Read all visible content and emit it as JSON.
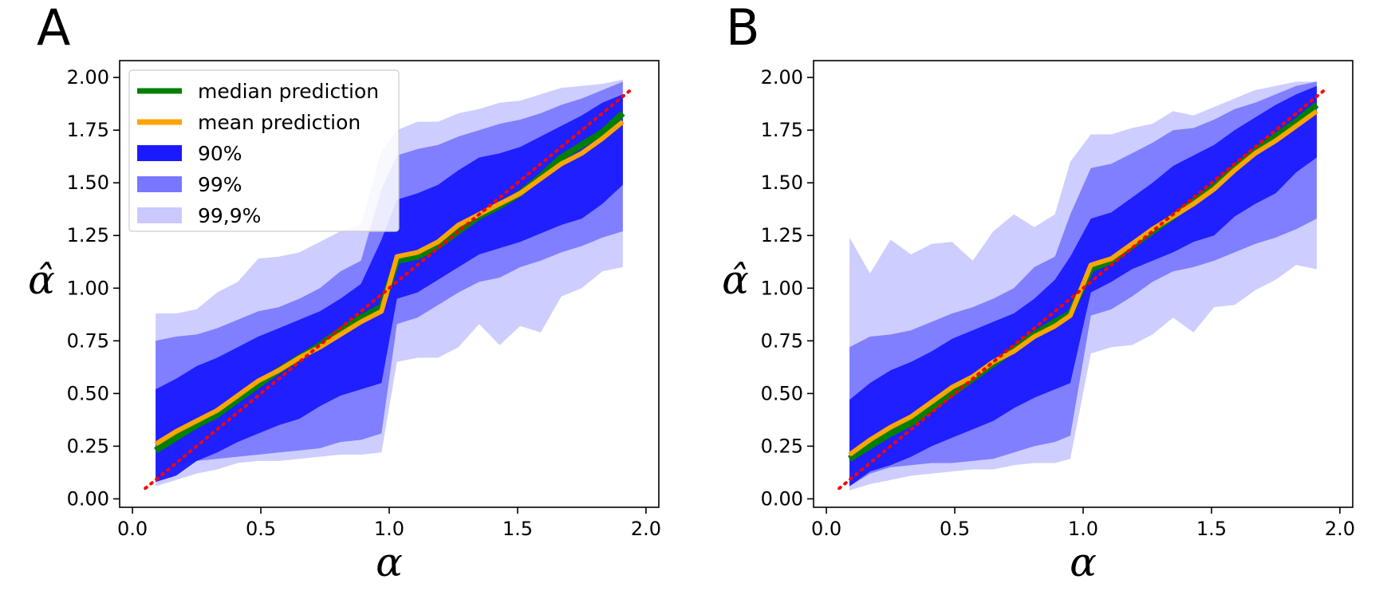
{
  "colors": {
    "median": "#008000",
    "mean": "#ffa500",
    "diagonal": "#ff0000",
    "band90": "#1a1aff",
    "band99": "#7777ff",
    "band999": "#c9c9ff"
  },
  "legend": {
    "placement": "upper-left",
    "entries": [
      {
        "key": "median",
        "label": "median prediction",
        "kind": "line"
      },
      {
        "key": "mean",
        "label": "mean prediction",
        "kind": "line"
      },
      {
        "key": "band90",
        "label": "90%",
        "kind": "patch"
      },
      {
        "key": "band99",
        "label": "99%",
        "kind": "patch"
      },
      {
        "key": "band999",
        "label": "99,9%",
        "kind": "patch"
      }
    ]
  },
  "chart_data": [
    {
      "type": "area",
      "panel_label": "A",
      "xlabel": "α",
      "ylabel": "α̂",
      "xlim": [
        -0.05,
        2.05
      ],
      "ylim": [
        -0.04,
        2.08
      ],
      "xticks": [
        "0.0",
        "0.5",
        "1.0",
        "1.5",
        "2.0"
      ],
      "yticks": [
        "0.00",
        "0.25",
        "0.50",
        "0.75",
        "1.00",
        "1.25",
        "1.50",
        "1.75",
        "2.00"
      ],
      "grid": false,
      "has_legend": true,
      "diagonal": {
        "x": [
          0.05,
          1.95
        ],
        "y": [
          0.05,
          1.95
        ]
      },
      "x": [
        0.09,
        0.17,
        0.25,
        0.33,
        0.41,
        0.49,
        0.57,
        0.65,
        0.73,
        0.81,
        0.89,
        0.97,
        1.03,
        1.11,
        1.19,
        1.27,
        1.35,
        1.43,
        1.51,
        1.59,
        1.67,
        1.75,
        1.83,
        1.91
      ],
      "series": [
        {
          "name": "median prediction",
          "key": "median",
          "values": [
            0.23,
            0.29,
            0.35,
            0.4,
            0.47,
            0.54,
            0.61,
            0.67,
            0.73,
            0.8,
            0.86,
            0.91,
            1.13,
            1.15,
            1.2,
            1.27,
            1.34,
            1.39,
            1.45,
            1.53,
            1.62,
            1.68,
            1.74,
            1.83
          ]
        },
        {
          "name": "mean prediction",
          "key": "mean",
          "values": [
            0.26,
            0.32,
            0.37,
            0.42,
            0.49,
            0.56,
            0.61,
            0.67,
            0.72,
            0.78,
            0.84,
            0.89,
            1.15,
            1.17,
            1.22,
            1.3,
            1.35,
            1.4,
            1.45,
            1.52,
            1.59,
            1.64,
            1.71,
            1.79
          ]
        }
      ],
      "bands": [
        {
          "name": "99,9%",
          "key": "band999",
          "lower": [
            0.06,
            0.09,
            0.12,
            0.14,
            0.17,
            0.18,
            0.18,
            0.19,
            0.2,
            0.21,
            0.21,
            0.22,
            0.65,
            0.67,
            0.67,
            0.72,
            0.83,
            0.73,
            0.82,
            0.79,
            0.96,
            1.0,
            1.08,
            1.1
          ],
          "upper": [
            0.88,
            0.88,
            0.9,
            0.98,
            1.03,
            1.14,
            1.15,
            1.17,
            1.22,
            1.27,
            1.3,
            1.65,
            1.75,
            1.79,
            1.79,
            1.83,
            1.85,
            1.88,
            1.89,
            1.92,
            1.95,
            1.96,
            1.97,
            1.99
          ]
        },
        {
          "name": "99%",
          "key": "band99",
          "lower": [
            0.08,
            0.16,
            0.18,
            0.19,
            0.2,
            0.21,
            0.22,
            0.23,
            0.24,
            0.27,
            0.28,
            0.31,
            0.83,
            0.86,
            0.92,
            0.98,
            1.03,
            1.05,
            1.1,
            1.13,
            1.17,
            1.2,
            1.24,
            1.27
          ],
          "upper": [
            0.75,
            0.77,
            0.78,
            0.81,
            0.85,
            0.89,
            0.91,
            0.95,
            1.0,
            1.08,
            1.13,
            1.47,
            1.63,
            1.66,
            1.68,
            1.72,
            1.75,
            1.78,
            1.8,
            1.83,
            1.87,
            1.9,
            1.94,
            1.98
          ]
        },
        {
          "name": "90%",
          "key": "band90",
          "lower": [
            0.08,
            0.11,
            0.18,
            0.22,
            0.27,
            0.31,
            0.35,
            0.38,
            0.44,
            0.49,
            0.52,
            0.55,
            0.95,
            0.98,
            1.04,
            1.1,
            1.16,
            1.19,
            1.22,
            1.26,
            1.3,
            1.33,
            1.4,
            1.49
          ]
        },
        {
          "name": "90%-upper",
          "key": "band90_upper",
          "upper": [
            0.52,
            0.57,
            0.63,
            0.67,
            0.72,
            0.77,
            0.81,
            0.85,
            0.89,
            0.95,
            1.02,
            1.23,
            1.42,
            1.45,
            1.49,
            1.56,
            1.62,
            1.64,
            1.67,
            1.72,
            1.77,
            1.82,
            1.88,
            1.92
          ]
        }
      ]
    },
    {
      "type": "area",
      "panel_label": "B",
      "xlabel": "α",
      "ylabel": "α̂",
      "xlim": [
        -0.05,
        2.05
      ],
      "ylim": [
        -0.04,
        2.08
      ],
      "xticks": [
        "0.0",
        "0.5",
        "1.0",
        "1.5",
        "2.0"
      ],
      "yticks": [
        "0.00",
        "0.25",
        "0.50",
        "0.75",
        "1.00",
        "1.25",
        "1.50",
        "1.75",
        "2.00"
      ],
      "grid": false,
      "has_legend": false,
      "diagonal": {
        "x": [
          0.05,
          1.95
        ],
        "y": [
          0.05,
          1.95
        ]
      },
      "x": [
        0.09,
        0.17,
        0.25,
        0.33,
        0.41,
        0.49,
        0.57,
        0.65,
        0.73,
        0.81,
        0.89,
        0.95,
        1.03,
        1.11,
        1.19,
        1.27,
        1.35,
        1.43,
        1.51,
        1.59,
        1.67,
        1.75,
        1.83,
        1.91
      ],
      "series": [
        {
          "name": "median prediction",
          "key": "median",
          "values": [
            0.19,
            0.25,
            0.31,
            0.36,
            0.43,
            0.5,
            0.57,
            0.64,
            0.71,
            0.78,
            0.84,
            0.88,
            1.09,
            1.13,
            1.2,
            1.27,
            1.34,
            1.41,
            1.48,
            1.57,
            1.65,
            1.72,
            1.79,
            1.87
          ]
        },
        {
          "name": "mean prediction",
          "key": "mean",
          "values": [
            0.21,
            0.28,
            0.34,
            0.39,
            0.46,
            0.53,
            0.58,
            0.65,
            0.7,
            0.77,
            0.82,
            0.87,
            1.11,
            1.14,
            1.21,
            1.28,
            1.34,
            1.4,
            1.47,
            1.56,
            1.64,
            1.7,
            1.77,
            1.84
          ]
        }
      ],
      "bands": [
        {
          "name": "99,9%",
          "key": "band999",
          "lower": [
            0.04,
            0.07,
            0.09,
            0.11,
            0.12,
            0.13,
            0.14,
            0.14,
            0.16,
            0.17,
            0.17,
            0.19,
            0.69,
            0.72,
            0.73,
            0.78,
            0.86,
            0.79,
            0.91,
            0.92,
            0.99,
            1.04,
            1.11,
            1.09
          ],
          "upper": [
            1.24,
            1.07,
            1.23,
            1.16,
            1.21,
            1.22,
            1.13,
            1.27,
            1.35,
            1.29,
            1.35,
            1.6,
            1.73,
            1.73,
            1.76,
            1.78,
            1.84,
            1.82,
            1.86,
            1.9,
            1.94,
            1.96,
            1.98,
            1.98
          ]
        },
        {
          "name": "99%",
          "key": "band99",
          "lower": [
            0.06,
            0.12,
            0.15,
            0.16,
            0.17,
            0.17,
            0.18,
            0.19,
            0.22,
            0.25,
            0.27,
            0.3,
            0.87,
            0.9,
            0.96,
            1.03,
            1.08,
            1.1,
            1.13,
            1.17,
            1.21,
            1.24,
            1.28,
            1.33
          ],
          "upper": [
            0.72,
            0.77,
            0.78,
            0.8,
            0.84,
            0.88,
            0.91,
            0.95,
            1.0,
            1.1,
            1.15,
            1.35,
            1.57,
            1.59,
            1.64,
            1.69,
            1.75,
            1.76,
            1.8,
            1.85,
            1.88,
            1.92,
            1.96,
            1.98
          ]
        },
        {
          "name": "90%",
          "key": "band90",
          "lower": [
            0.06,
            0.13,
            0.16,
            0.2,
            0.25,
            0.29,
            0.33,
            0.37,
            0.43,
            0.48,
            0.52,
            0.55,
            0.98,
            1.03,
            1.09,
            1.13,
            1.17,
            1.22,
            1.25,
            1.34,
            1.4,
            1.45,
            1.55,
            1.62
          ]
        },
        {
          "name": "90%-upper",
          "key": "band90_upper",
          "upper": [
            0.47,
            0.55,
            0.61,
            0.65,
            0.7,
            0.76,
            0.8,
            0.84,
            0.88,
            0.95,
            1.04,
            1.15,
            1.33,
            1.36,
            1.43,
            1.5,
            1.58,
            1.63,
            1.68,
            1.75,
            1.81,
            1.87,
            1.92,
            1.96
          ]
        }
      ]
    }
  ]
}
